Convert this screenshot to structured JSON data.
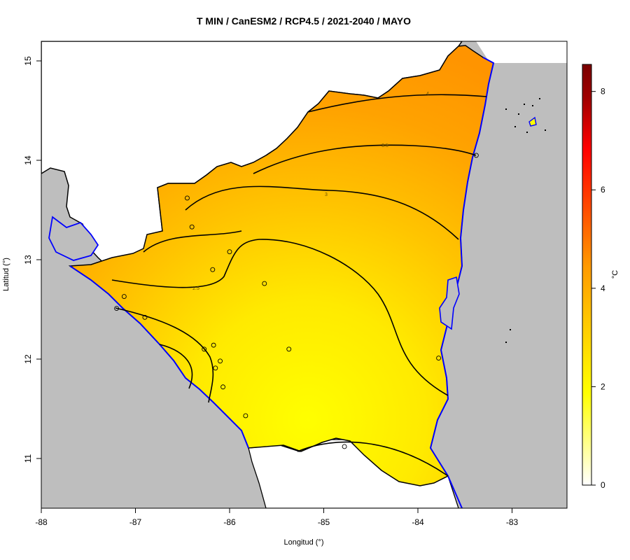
{
  "title": "T MIN / CanESM2 / RCP4.5 / 2021-2040 / MAYO",
  "x_axis": {
    "label": "Longitud (°)",
    "ticks": [
      {
        "value": -88,
        "label": "-88"
      },
      {
        "value": -87,
        "label": "-87"
      },
      {
        "value": -86,
        "label": "-86"
      },
      {
        "value": -85,
        "label": "-85"
      },
      {
        "value": -84,
        "label": "-84"
      },
      {
        "value": -83,
        "label": "-83"
      }
    ]
  },
  "y_axis": {
    "label": "Latitud (°)",
    "ticks": [
      {
        "value": 11,
        "label": "11"
      },
      {
        "value": 12,
        "label": "12"
      },
      {
        "value": 13,
        "label": "13"
      },
      {
        "value": 14,
        "label": "14"
      },
      {
        "value": 15,
        "label": "15"
      }
    ]
  },
  "colorbar": {
    "unit_label": "°C",
    "min": 0,
    "max": 8.55,
    "ticks": [
      {
        "value": 0,
        "label": "0"
      },
      {
        "value": 2,
        "label": "2"
      },
      {
        "value": 4,
        "label": "4"
      },
      {
        "value": 6,
        "label": "6"
      },
      {
        "value": 8,
        "label": "8"
      }
    ],
    "colors": [
      "#ffffff",
      "#ffff00",
      "#ffc400",
      "#ff9a00",
      "#ff4a00",
      "#ff0000",
      "#a00000",
      "#7a0000"
    ]
  },
  "contours": [
    {
      "level": "4",
      "label": "4"
    },
    {
      "level": "3.5",
      "label": "3.5"
    },
    {
      "level": "3",
      "label": "3"
    },
    {
      "level": "2.5",
      "label": "2.5"
    }
  ],
  "stations": [
    {
      "lon": -86.45,
      "lat": 13.62
    },
    {
      "lon": -86.4,
      "lat": 13.33
    },
    {
      "lon": -86.0,
      "lat": 13.08
    },
    {
      "lon": -86.18,
      "lat": 12.9
    },
    {
      "lon": -85.63,
      "lat": 12.76
    },
    {
      "lon": -87.12,
      "lat": 12.63
    },
    {
      "lon": -87.2,
      "lat": 12.51
    },
    {
      "lon": -86.9,
      "lat": 12.42
    },
    {
      "lon": -86.17,
      "lat": 12.14
    },
    {
      "lon": -86.27,
      "lat": 12.1
    },
    {
      "lon": -85.37,
      "lat": 12.1
    },
    {
      "lon": -86.1,
      "lat": 11.98
    },
    {
      "lon": -86.15,
      "lat": 11.91
    },
    {
      "lon": -86.07,
      "lat": 11.72
    },
    {
      "lon": -85.83,
      "lat": 11.43
    },
    {
      "lon": -84.78,
      "lat": 11.12
    },
    {
      "lon": -83.78,
      "lat": 12.01
    },
    {
      "lon": -83.38,
      "lat": 14.05
    }
  ]
}
